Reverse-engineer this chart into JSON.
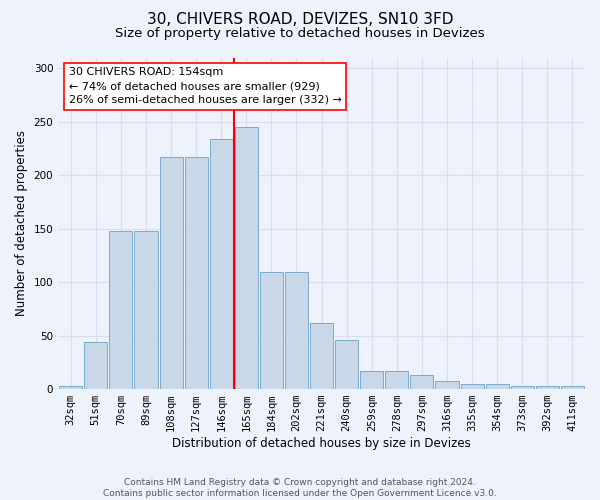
{
  "title": "30, CHIVERS ROAD, DEVIZES, SN10 3FD",
  "subtitle": "Size of property relative to detached houses in Devizes",
  "xlabel": "Distribution of detached houses by size in Devizes",
  "ylabel": "Number of detached properties",
  "categories": [
    "32sqm",
    "51sqm",
    "70sqm",
    "89sqm",
    "108sqm",
    "127sqm",
    "146sqm",
    "165sqm",
    "184sqm",
    "202sqm",
    "221sqm",
    "240sqm",
    "259sqm",
    "278sqm",
    "297sqm",
    "316sqm",
    "335sqm",
    "354sqm",
    "373sqm",
    "392sqm",
    "411sqm"
  ],
  "values": [
    3,
    44,
    148,
    148,
    217,
    217,
    234,
    245,
    109,
    109,
    62,
    46,
    17,
    17,
    13,
    8,
    5,
    5,
    3,
    3,
    3
  ],
  "bar_color": "#c8d8e8",
  "bar_edge_color": "#7aaacc",
  "vline_color": "red",
  "vline_pos": 6.5,
  "annotation_text": "30 CHIVERS ROAD: 154sqm\n← 74% of detached houses are smaller (929)\n26% of semi-detached houses are larger (332) →",
  "annotation_box_color": "white",
  "annotation_box_edge": "red",
  "bg_color": "#eef2fb",
  "grid_color": "#d8ddf0",
  "footer_text": "Contains HM Land Registry data © Crown copyright and database right 2024.\nContains public sector information licensed under the Open Government Licence v3.0.",
  "ylim": [
    0,
    310
  ],
  "yticks": [
    0,
    50,
    100,
    150,
    200,
    250,
    300
  ],
  "title_fontsize": 11,
  "subtitle_fontsize": 9.5,
  "ylabel_fontsize": 8.5,
  "xlabel_fontsize": 8.5,
  "tick_fontsize": 7.5,
  "annotation_fontsize": 8,
  "footer_fontsize": 6.5
}
